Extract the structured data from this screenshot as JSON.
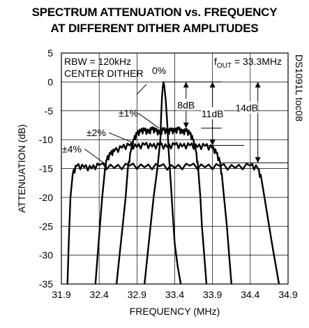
{
  "chart_data": {
    "type": "line",
    "title_line1": "SPECTRUM ATTENUATION vs. FREQUENCY",
    "title_line2": "AT DIFFERENT DITHER AMPLITUDES",
    "xlabel": "FREQUENCY (MHz)",
    "ylabel": "ATTENUATION (dB)",
    "xlim": [
      31.9,
      34.9
    ],
    "ylim": [
      -35,
      5
    ],
    "xticks": [
      "31.9",
      "32.4",
      "32.9",
      "33.4",
      "33.9",
      "34.4",
      "34.9"
    ],
    "yticks": [
      "5",
      "0",
      "-5",
      "-10",
      "-15",
      "-20",
      "-25",
      "-30",
      "-35"
    ],
    "grid": true,
    "series": [
      {
        "name": "0%",
        "x": [
          33.0,
          33.04,
          33.08,
          33.12,
          33.17,
          33.21,
          33.22,
          33.23,
          33.24,
          33.25,
          33.26,
          33.28,
          33.3,
          33.32,
          33.35,
          33.38,
          33.4,
          33.44,
          33.48
        ],
        "y": [
          -35,
          -30,
          -25,
          -20,
          -15,
          -10,
          -6,
          -3,
          -1,
          0,
          -0.5,
          -3,
          -7,
          -12,
          -18,
          -24,
          -28,
          -32,
          -35
        ]
      },
      {
        "name": "±1%",
        "x": [
          32.63,
          32.67,
          32.71,
          32.75,
          32.78,
          32.82,
          32.86,
          32.9,
          32.95,
          33.0,
          33.05,
          33.1,
          33.15,
          33.2,
          33.25,
          33.3,
          33.35,
          33.4,
          33.45,
          33.5,
          33.55,
          33.6,
          33.64,
          33.68,
          33.71,
          33.74,
          33.76,
          33.79,
          33.82
        ],
        "y": [
          -35,
          -30,
          -25,
          -20,
          -15,
          -12,
          -10,
          -9,
          -8.6,
          -8.4,
          -8.8,
          -8.2,
          -8.5,
          -8.9,
          -8.3,
          -8.7,
          -8.4,
          -8.6,
          -8.2,
          -8.8,
          -8.5,
          -9,
          -10,
          -12,
          -15,
          -20,
          -25,
          -30,
          -35
        ]
      },
      {
        "name": "±2%",
        "x": [
          32.35,
          32.38,
          32.41,
          32.44,
          32.47,
          32.5,
          32.55,
          32.6,
          32.7,
          32.8,
          32.9,
          33.0,
          33.1,
          33.2,
          33.3,
          33.4,
          33.5,
          33.6,
          33.7,
          33.8,
          33.9,
          33.95,
          34.0,
          34.03,
          34.06,
          34.09,
          34.12,
          34.15
        ],
        "y": [
          -35,
          -30,
          -25,
          -20,
          -16,
          -13.5,
          -12.5,
          -12,
          -11.4,
          -11.0,
          -11.3,
          -10.9,
          -11.2,
          -11.0,
          -11.3,
          -10.9,
          -11.2,
          -11.0,
          -11.3,
          -11.1,
          -11.5,
          -12.3,
          -14,
          -17,
          -21,
          -25,
          -30,
          -35
        ]
      },
      {
        "name": "±4%",
        "x": [
          31.98,
          32.0,
          32.02,
          32.05,
          32.1,
          32.2,
          32.3,
          32.4,
          32.6,
          32.8,
          33.0,
          33.2,
          33.4,
          33.6,
          33.8,
          34.0,
          34.2,
          34.4,
          34.5,
          34.55,
          34.6,
          34.65,
          34.7,
          34.74,
          34.78
        ],
        "y": [
          -35,
          -27,
          -20,
          -16,
          -14.6,
          -14.8,
          -15.0,
          -14.4,
          -14.9,
          -14.5,
          -14.8,
          -14.6,
          -14.9,
          -14.5,
          -14.8,
          -14.6,
          -14.9,
          -14.5,
          -15.0,
          -17,
          -21,
          -25,
          -29,
          -32,
          -35
        ]
      }
    ],
    "annotations": {
      "rbw": "RBW = 120kHz",
      "center": "CENTER DITHER",
      "fout_prefix": "f",
      "fout_sub": "OUT",
      "fout_suffix": " = 33.3MHz",
      "label_0": "0%",
      "label_1": "±1%",
      "label_2": "±2%",
      "label_4": "±4%",
      "db8": "8dB",
      "db11": "11dB",
      "db14": "14dB",
      "code": "DS1091L toc08"
    }
  }
}
